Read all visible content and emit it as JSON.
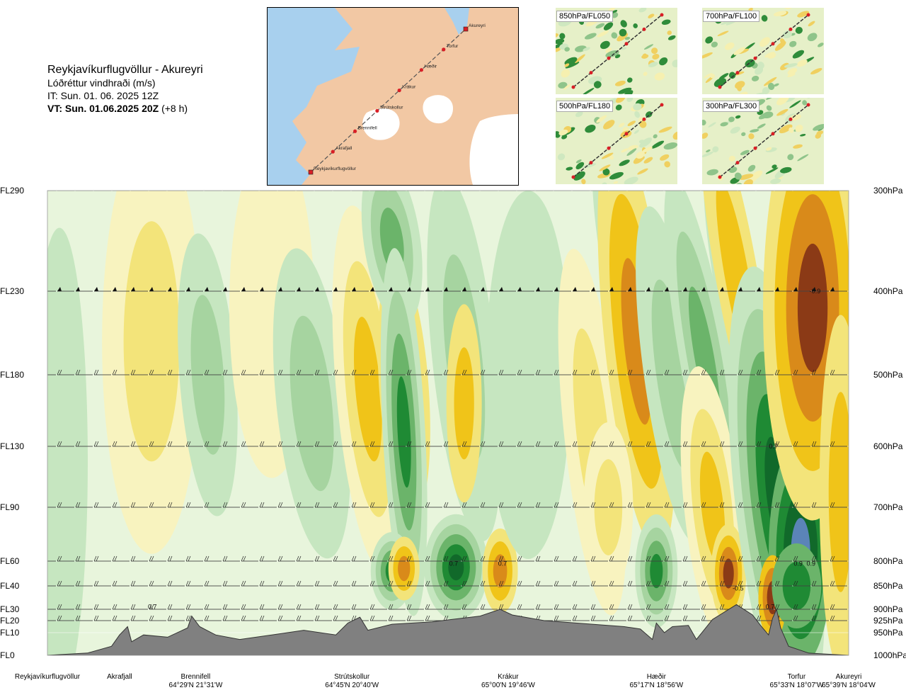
{
  "title": {
    "route": "Reykjavíkurflugvöllur - Akureyri",
    "subtitle": "Lóðréttur vindhraði (m/s)",
    "issue_time": "IT: Sun. 01. 06. 2025 12Z",
    "valid_time_bold": "VT: Sun. 01.06.2025 20Z",
    "valid_time_offset": "(+8 h)"
  },
  "map": {
    "waypoints": [
      {
        "name": "Akureyri",
        "marker": "square"
      },
      {
        "name": "Torfur",
        "marker": "circle"
      },
      {
        "name": "Hæðir",
        "marker": "circle"
      },
      {
        "name": "Krákur",
        "marker": "circle"
      },
      {
        "name": "Strútskollur",
        "marker": "circle"
      },
      {
        "name": "Brennifell",
        "marker": "circle"
      },
      {
        "name": "Akrafjall",
        "marker": "circle"
      },
      {
        "name": "Reykjavíkurflugvöllur",
        "marker": "square"
      }
    ],
    "colors": {
      "sea": "#a8d0ee",
      "land": "#f2c8a4",
      "ice": "#ffffff",
      "route": "#555555",
      "waypoint": "#d81f26"
    }
  },
  "mini_maps": [
    {
      "label": "850hPa/FL050"
    },
    {
      "label": "700hPa/FL100"
    },
    {
      "label": "500hPa/FL180"
    },
    {
      "label": "300hPa/FL300"
    }
  ],
  "chart_data": {
    "type": "heatmap",
    "title": "Lóðréttur vindhraði (m/s)",
    "flight_levels": [
      {
        "label": "FL290",
        "hpa": "300hPa",
        "ft": 29000
      },
      {
        "label": "FL230",
        "hpa": "400hPa",
        "ft": 23000
      },
      {
        "label": "FL180",
        "hpa": "500hPa",
        "ft": 18000
      },
      {
        "label": "FL130",
        "hpa": "600hPa",
        "ft": 13000
      },
      {
        "label": "FL90",
        "hpa": "700hPa",
        "ft": 9000
      },
      {
        "label": "FL60",
        "hpa": "800hPa",
        "ft": 6000
      },
      {
        "label": "FL40",
        "hpa": "850hPa",
        "ft": 4000
      },
      {
        "label": "FL30",
        "hpa": "900hPa",
        "ft": 3000
      },
      {
        "label": "FL20",
        "hpa": "925hPa",
        "ft": 2000
      },
      {
        "label": "FL10",
        "hpa": "950hPa",
        "ft": 1000
      },
      {
        "label": "FL0",
        "hpa": "1000hPa",
        "ft": 0
      }
    ],
    "locations": [
      {
        "name": "Reykjavíkurflugvöllur",
        "coords": "",
        "x": 0.0
      },
      {
        "name": "Akrafjall",
        "coords": "",
        "x": 0.09
      },
      {
        "name": "Brennifell",
        "coords": "64°29'N 21°31'W",
        "x": 0.185
      },
      {
        "name": "Strútskollur",
        "coords": "64°45'N 20°40'W",
        "x": 0.38
      },
      {
        "name": "Krákur",
        "coords": "65°00'N 19°46'W",
        "x": 0.575
      },
      {
        "name": "Hæðir",
        "coords": "65°17'N 18°56'W",
        "x": 0.76
      },
      {
        "name": "Torfur",
        "coords": "65°33'N 18°07'W",
        "x": 0.935
      },
      {
        "name": "Akureyri",
        "coords": "65°39'N 18°04'W",
        "x": 1.0
      }
    ],
    "contour_labels": [
      {
        "text": "0.7",
        "x": 0.131,
        "ft": 3100
      },
      {
        "text": "0.7",
        "x": 0.507,
        "ft": 5800
      },
      {
        "text": "0.7",
        "x": 0.568,
        "ft": 5800
      },
      {
        "text": "-0.5",
        "x": 0.862,
        "ft": 3900
      },
      {
        "text": "0.7",
        "x": 0.902,
        "ft": 3100
      },
      {
        "text": "0.9",
        "x": 0.937,
        "ft": 5800
      },
      {
        "text": "0.9",
        "x": 0.953,
        "ft": 5800
      },
      {
        "text": "0.7",
        "x": 0.906,
        "ft": 13000
      },
      {
        "text": "-0.9",
        "x": 0.958,
        "ft": 23000
      }
    ],
    "legend_colors": {
      "strong_neg": "#8b3a16",
      "neg3": "#d98a1a",
      "neg2": "#f0c419",
      "neg1": "#f3e47a",
      "neg0": "#f8f3bf",
      "zero": "#ffffff",
      "pos0": "#e8f5dc",
      "pos1": "#c6e6c0",
      "pos2": "#a6d4a0",
      "pos3": "#6bb46a",
      "pos4": "#1f8a34",
      "pos5": "#11692a",
      "pos_max": "#5b84b8"
    }
  }
}
